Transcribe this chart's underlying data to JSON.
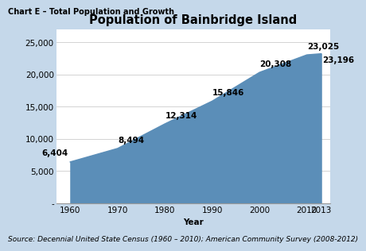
{
  "title": "Population of Bainbridge Island",
  "xlabel": "Year",
  "years": [
    1960,
    1970,
    1980,
    1990,
    2000,
    2010,
    2013
  ],
  "population": [
    6404,
    8494,
    12314,
    15846,
    20308,
    23025,
    23196
  ],
  "area_color": "#5b8eb8",
  "bg_outer": "#c5d8ea",
  "bg_inner": "#ffffff",
  "yticks": [
    0,
    5000,
    10000,
    15000,
    20000,
    25000
  ],
  "ytick_labels": [
    "-",
    "5,000",
    "10,000",
    "15,000",
    "20,000",
    "25,000"
  ],
  "ylim": [
    0,
    27000
  ],
  "xlim": [
    1957,
    2015
  ],
  "chart_header": "Chart E – Total Population and Growth",
  "source_text": "Source: Decennial United State Census (1960 – 2010); American Community Survey (2008-2012)",
  "title_fontsize": 10.5,
  "label_fontsize": 7.5,
  "axis_fontsize": 7.5,
  "header_fontsize": 7,
  "source_fontsize": 6.5
}
